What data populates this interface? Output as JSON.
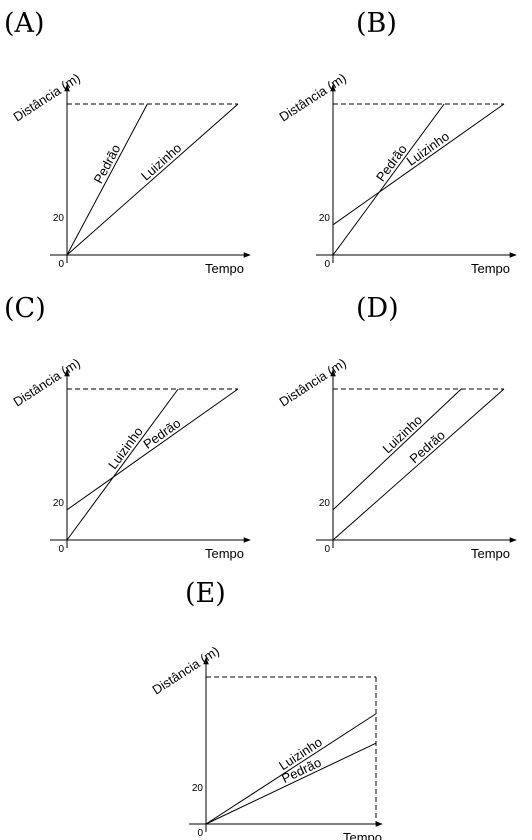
{
  "chart_data": [
    {
      "panel": "(A)",
      "type": "line",
      "ylabel": "Distância (m)",
      "xlabel": "Tempo",
      "origin_label": "0",
      "y_tick_label": "20",
      "dashed_top": true,
      "dashed_right": false,
      "series": [
        {
          "name": "Pedrão",
          "start": [
            0,
            0
          ],
          "end": [
            0.47,
            1
          ]
        },
        {
          "name": "Luizinho",
          "start": [
            0,
            0
          ],
          "end": [
            1,
            1
          ]
        }
      ]
    },
    {
      "panel": "(B)",
      "type": "line",
      "ylabel": "Distância (m)",
      "xlabel": "Tempo",
      "origin_label": "0",
      "y_tick_label": "20",
      "dashed_top": true,
      "dashed_right": false,
      "series": [
        {
          "name": "Pedrão",
          "start": [
            0,
            0
          ],
          "end": [
            0.65,
            1
          ]
        },
        {
          "name": "Luizinho",
          "start": [
            0,
            0.2
          ],
          "end": [
            1,
            1
          ]
        }
      ]
    },
    {
      "panel": "(C)",
      "type": "line",
      "ylabel": "Distância (m)",
      "xlabel": "Tempo",
      "origin_label": "0",
      "y_tick_label": "20",
      "dashed_top": true,
      "dashed_right": false,
      "series": [
        {
          "name": "Luizinho",
          "start": [
            0,
            0
          ],
          "end": [
            0.65,
            1
          ]
        },
        {
          "name": "Pedrão",
          "start": [
            0,
            0.2
          ],
          "end": [
            1,
            1
          ]
        }
      ]
    },
    {
      "panel": "(D)",
      "type": "line",
      "ylabel": "Distância (m)",
      "xlabel": "Tempo",
      "origin_label": "0",
      "y_tick_label": "20",
      "dashed_top": true,
      "dashed_right": false,
      "series": [
        {
          "name": "Luizinho",
          "start": [
            0,
            0.2
          ],
          "end": [
            0.75,
            1
          ]
        },
        {
          "name": "Pedrão",
          "start": [
            0,
            0
          ],
          "end": [
            1,
            1
          ]
        }
      ]
    },
    {
      "panel": "(E)",
      "type": "line",
      "ylabel": "Distância (m)",
      "xlabel": "Tempo",
      "origin_label": "0",
      "y_tick_label": "20",
      "dashed_top": true,
      "dashed_right": true,
      "series": [
        {
          "name": "Luizinho",
          "start": [
            0,
            0
          ],
          "end": [
            1,
            0.75
          ]
        },
        {
          "name": "Pedrão",
          "start": [
            0,
            0
          ],
          "end": [
            1,
            0.55
          ]
        }
      ]
    }
  ]
}
